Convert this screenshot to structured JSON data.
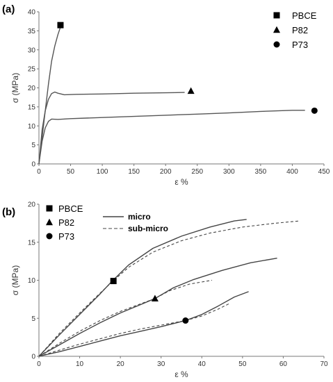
{
  "chart_data": [
    {
      "panel": "(a)",
      "type": "line",
      "xlabel": "ε %",
      "ylabel": "σ (MPa)",
      "xlim": [
        0,
        450
      ],
      "ylim": [
        0,
        40
      ],
      "xticks": [
        0,
        50,
        100,
        150,
        200,
        250,
        300,
        350,
        400,
        450
      ],
      "yticks": [
        0,
        5,
        10,
        15,
        20,
        25,
        30,
        35,
        40
      ],
      "legend": "top-right",
      "series": [
        {
          "name": "PBCE",
          "marker": "square",
          "color": "#555555",
          "points": [
            [
              0,
              0
            ],
            [
              5,
              7
            ],
            [
              10,
              14
            ],
            [
              15,
              21
            ],
            [
              20,
              27
            ],
            [
              25,
              31
            ],
            [
              30,
              34
            ],
            [
              34,
              36
            ]
          ],
          "end_marker": [
            34,
            36.5
          ]
        },
        {
          "name": "P82",
          "marker": "triangle",
          "color": "#555555",
          "points": [
            [
              0,
              0
            ],
            [
              5,
              9
            ],
            [
              10,
              14
            ],
            [
              15,
              17
            ],
            [
              20,
              18.5
            ],
            [
              25,
              18.9
            ],
            [
              30,
              18.6
            ],
            [
              40,
              18.2
            ],
            [
              60,
              18.3
            ],
            [
              100,
              18.4
            ],
            [
              150,
              18.6
            ],
            [
              200,
              18.7
            ],
            [
              230,
              18.8
            ]
          ],
          "end_marker": [
            240,
            19.2
          ]
        },
        {
          "name": "P73",
          "marker": "circle",
          "color": "#555555",
          "points": [
            [
              0,
              0
            ],
            [
              5,
              6
            ],
            [
              10,
              9.5
            ],
            [
              15,
              11.2
            ],
            [
              20,
              11.8
            ],
            [
              30,
              11.7
            ],
            [
              50,
              11.9
            ],
            [
              100,
              12.2
            ],
            [
              150,
              12.5
            ],
            [
              200,
              12.8
            ],
            [
              250,
              13.1
            ],
            [
              300,
              13.4
            ],
            [
              350,
              13.8
            ],
            [
              400,
              14.1
            ],
            [
              420,
              14.1
            ]
          ],
          "end_marker": [
            435,
            14
          ]
        }
      ]
    },
    {
      "panel": "(b)",
      "type": "line",
      "xlabel": "ε %",
      "ylabel": "σ (MPa)",
      "xlim": [
        0,
        70
      ],
      "ylim": [
        0,
        20
      ],
      "xticks": [
        0,
        10,
        20,
        30,
        40,
        50,
        60,
        70
      ],
      "yticks": [
        0,
        5,
        10,
        15,
        20
      ],
      "legend": "top-left",
      "marker_legend": [
        {
          "name": "PBCE",
          "marker": "square"
        },
        {
          "name": "P82",
          "marker": "triangle"
        },
        {
          "name": "P73",
          "marker": "circle"
        }
      ],
      "style_legend": [
        {
          "name": "micro",
          "style": "solid"
        },
        {
          "name": "sub-micro",
          "style": "dashed"
        }
      ],
      "series": [
        {
          "material": "PBCE",
          "style": "solid",
          "points": [
            [
              0,
              0
            ],
            [
              5,
              2.8
            ],
            [
              10,
              5.5
            ],
            [
              15,
              8.2
            ],
            [
              18,
              9.9
            ],
            [
              22,
              12
            ],
            [
              28,
              14.2
            ],
            [
              35,
              15.8
            ],
            [
              42,
              17
            ],
            [
              48,
              17.8
            ],
            [
              51,
              18
            ]
          ]
        },
        {
          "material": "PBCE",
          "style": "dashed",
          "points": [
            [
              0,
              0
            ],
            [
              5,
              3
            ],
            [
              10,
              5.7
            ],
            [
              15,
              8.3
            ],
            [
              18,
              9.8
            ],
            [
              22,
              11.7
            ],
            [
              28,
              13.7
            ],
            [
              35,
              15.2
            ],
            [
              42,
              16.2
            ],
            [
              50,
              17
            ],
            [
              58,
              17.5
            ],
            [
              64,
              17.8
            ]
          ]
        },
        {
          "material": "P82",
          "style": "solid",
          "points": [
            [
              0,
              0
            ],
            [
              5,
              1.5
            ],
            [
              10,
              3
            ],
            [
              15,
              4.4
            ],
            [
              20,
              5.7
            ],
            [
              25,
              6.8
            ],
            [
              28.5,
              7.6
            ],
            [
              33,
              9
            ],
            [
              38,
              10.1
            ],
            [
              45,
              11.3
            ],
            [
              52,
              12.3
            ],
            [
              58.5,
              12.9
            ]
          ]
        },
        {
          "material": "P82",
          "style": "dashed",
          "points": [
            [
              0,
              0
            ],
            [
              5,
              1.7
            ],
            [
              10,
              3.3
            ],
            [
              15,
              4.7
            ],
            [
              20,
              5.9
            ],
            [
              25,
              6.9
            ],
            [
              28.5,
              7.6
            ],
            [
              32,
              8.6
            ],
            [
              37,
              9.5
            ],
            [
              42.5,
              10
            ]
          ]
        },
        {
          "material": "P73",
          "style": "solid",
          "points": [
            [
              0,
              0
            ],
            [
              5,
              0.6
            ],
            [
              10,
              1.3
            ],
            [
              15,
              2
            ],
            [
              20,
              2.7
            ],
            [
              25,
              3.3
            ],
            [
              30,
              3.9
            ],
            [
              36,
              4.7
            ],
            [
              40,
              5.5
            ],
            [
              44,
              6.6
            ],
            [
              48,
              7.8
            ],
            [
              51.5,
              8.5
            ]
          ]
        },
        {
          "material": "P73",
          "style": "dashed",
          "points": [
            [
              0,
              0
            ],
            [
              5,
              0.8
            ],
            [
              10,
              1.6
            ],
            [
              15,
              2.3
            ],
            [
              20,
              3
            ],
            [
              25,
              3.6
            ],
            [
              30,
              4.1
            ],
            [
              36,
              4.7
            ],
            [
              40,
              5.3
            ],
            [
              44,
              6.2
            ],
            [
              47,
              7
            ]
          ]
        }
      ],
      "markers": [
        {
          "material": "PBCE",
          "marker": "square",
          "x": 18.3,
          "y": 9.9
        },
        {
          "material": "P82",
          "marker": "triangle",
          "x": 28.5,
          "y": 7.6
        },
        {
          "material": "P73",
          "marker": "circle",
          "x": 36,
          "y": 4.7
        }
      ]
    }
  ]
}
